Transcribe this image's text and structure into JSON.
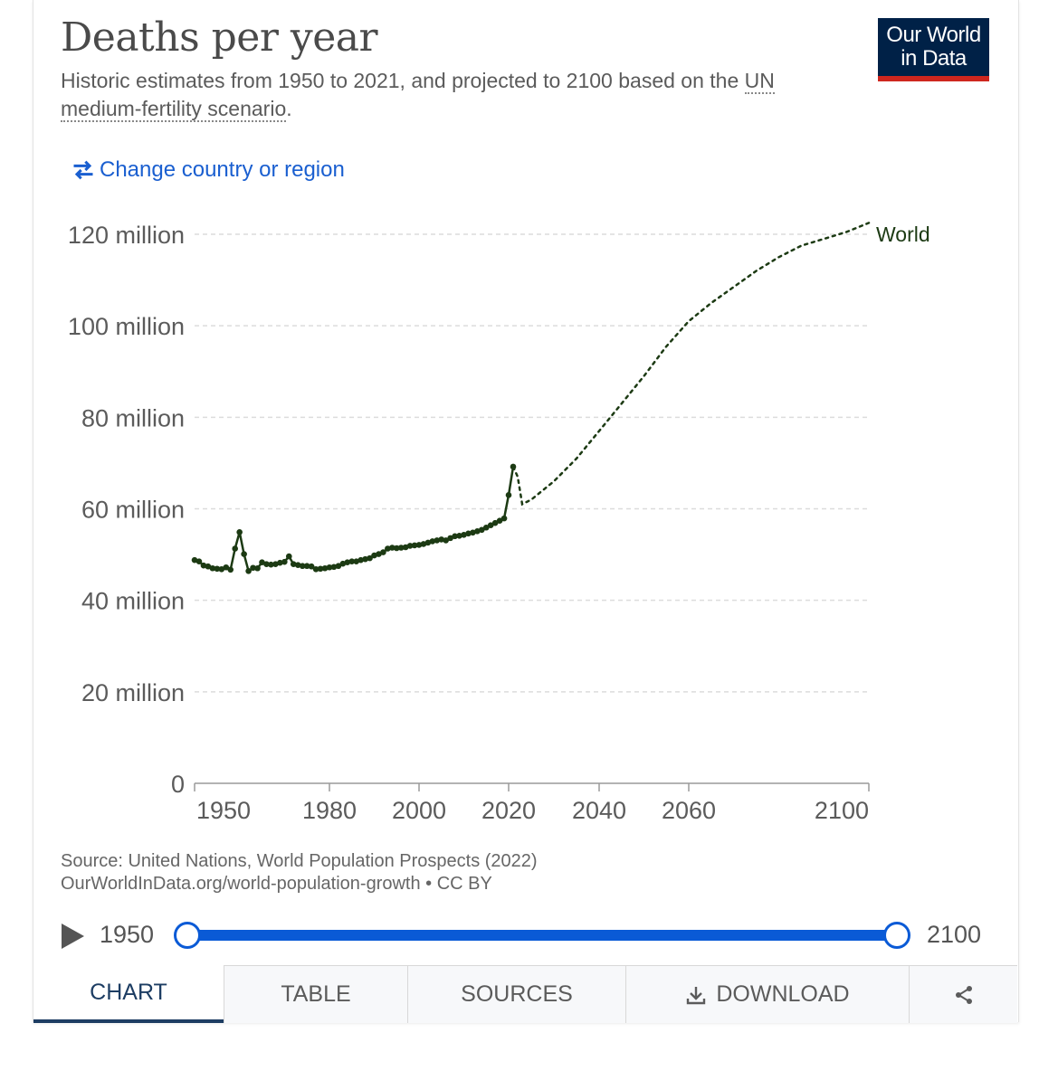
{
  "header": {
    "title": "Deaths per year",
    "subtitle_text": "Historic estimates from 1950 to 2021, and projected to 2100 based on the ",
    "subtitle_link": "UN medium-fertility scenario",
    "subtitle_end": ".",
    "logo_line1": "Our World",
    "logo_line2": "in Data",
    "change_label": "Change country or region"
  },
  "colors": {
    "series": "#1c3a13",
    "accent": "#0a5ad6",
    "logo_bg": "#002147",
    "logo_bar": "#ce261e",
    "link": "#1a5fd0"
  },
  "icons": {
    "change": "swap-arrows-icon",
    "play": "play-icon",
    "download": "download-icon",
    "share": "share-icon"
  },
  "chart_data": {
    "type": "line",
    "title": "Deaths per year",
    "series": [
      {
        "name": "World",
        "historic": {
          "x": [
            1950,
            1951,
            1952,
            1953,
            1954,
            1955,
            1956,
            1957,
            1958,
            1959,
            1960,
            1961,
            1962,
            1963,
            1964,
            1965,
            1966,
            1967,
            1968,
            1969,
            1970,
            1971,
            1972,
            1973,
            1974,
            1975,
            1976,
            1977,
            1978,
            1979,
            1980,
            1981,
            1982,
            1983,
            1984,
            1985,
            1986,
            1987,
            1988,
            1989,
            1990,
            1991,
            1992,
            1993,
            1994,
            1995,
            1996,
            1997,
            1998,
            1999,
            2000,
            2001,
            2002,
            2003,
            2004,
            2005,
            2006,
            2007,
            2008,
            2009,
            2010,
            2011,
            2012,
            2013,
            2014,
            2015,
            2016,
            2017,
            2018,
            2019,
            2020,
            2021
          ],
          "y": [
            48.8,
            48.5,
            47.6,
            47.4,
            47.0,
            46.9,
            46.8,
            47.2,
            46.7,
            51.3,
            54.9,
            50.1,
            46.4,
            47.1,
            47.0,
            48.3,
            47.9,
            47.8,
            47.9,
            48.2,
            48.4,
            49.6,
            47.9,
            47.7,
            47.5,
            47.5,
            47.4,
            46.8,
            46.9,
            47.0,
            47.2,
            47.3,
            47.5,
            48.0,
            48.3,
            48.5,
            48.5,
            48.8,
            49.0,
            49.2,
            49.8,
            50.1,
            50.5,
            51.3,
            51.5,
            51.4,
            51.5,
            51.6,
            51.9,
            52.0,
            52.1,
            52.3,
            52.6,
            52.9,
            53.1,
            53.3,
            53.1,
            53.6,
            54.0,
            54.1,
            54.3,
            54.6,
            54.8,
            55.1,
            55.4,
            55.9,
            56.4,
            56.9,
            57.4,
            57.9,
            63.0,
            69.2
          ]
        },
        "projected": {
          "x": [
            2021,
            2022,
            2023,
            2025,
            2030,
            2035,
            2040,
            2045,
            2050,
            2055,
            2060,
            2065,
            2070,
            2075,
            2080,
            2085,
            2090,
            2095,
            2100
          ],
          "y": [
            69.2,
            67.0,
            61.0,
            62.0,
            66.0,
            71.0,
            77.0,
            83.0,
            89.0,
            95.5,
            101.0,
            105.0,
            108.5,
            112.0,
            115.0,
            117.5,
            119.0,
            120.5,
            122.5
          ]
        }
      }
    ],
    "yticks": [
      "0",
      "20 million",
      "40 million",
      "60 million",
      "80 million",
      "100 million",
      "120 million"
    ],
    "ytick_values": [
      0,
      20,
      40,
      60,
      80,
      100,
      120
    ],
    "ylim": [
      0,
      120
    ],
    "xticks": [
      "1950",
      "1980",
      "2000",
      "2020",
      "2040",
      "2060",
      "2100"
    ],
    "xtick_values": [
      1950,
      1980,
      2000,
      2020,
      2040,
      2060,
      2100
    ],
    "xlim": [
      1950,
      2100
    ],
    "series_label": "World",
    "grid": "horizontal dashed",
    "legend": "inline-right"
  },
  "footer": {
    "source": "Source: United Nations, World Population Prospects (2022)",
    "url": "OurWorldInData.org/world-population-growth • CC BY"
  },
  "timeline": {
    "start": "1950",
    "end": "2100"
  },
  "tabs": [
    {
      "label": "CHART",
      "active": true
    },
    {
      "label": "TABLE",
      "active": false
    },
    {
      "label": "SOURCES",
      "active": false
    },
    {
      "label": "DOWNLOAD",
      "active": false
    }
  ]
}
